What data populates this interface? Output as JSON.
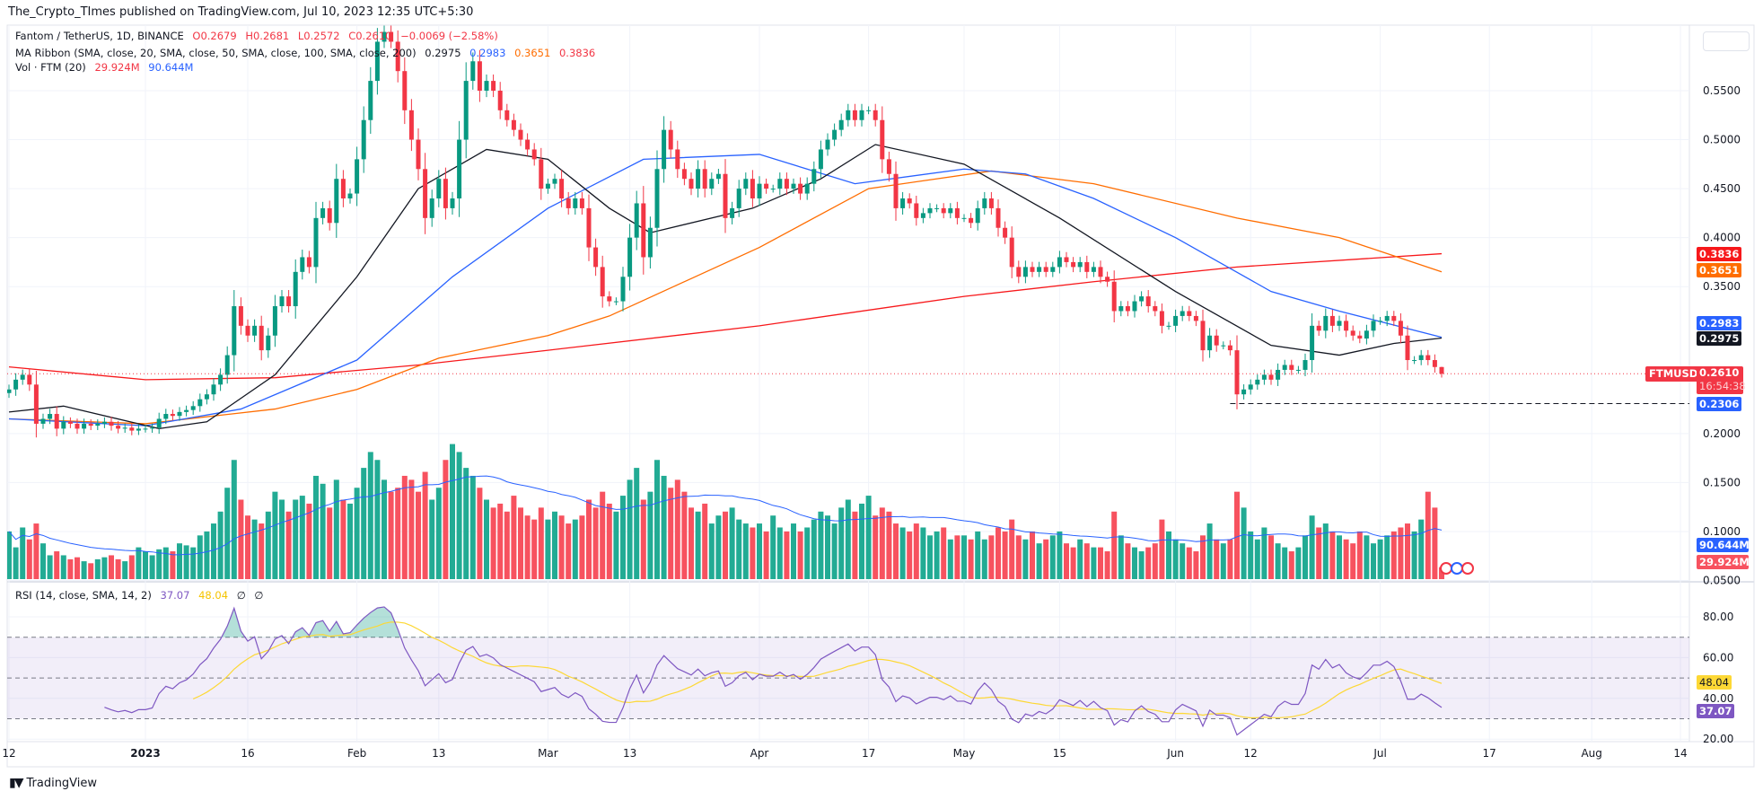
{
  "publisher_line": "The_Crypto_TImes published on TradingView.com, Jul 10, 2023 12:35 UTC+5:30",
  "legend": {
    "symbol": "Fantom / TetherUS, 1D, BINANCE",
    "open": "O0.2679",
    "high": "H0.2681",
    "low": "L0.2572",
    "close": "C0.2610",
    "change": "−0.0069 (−2.58%)",
    "ma_title": "MA Ribbon (SMA, close, 20, SMA, close, 50, SMA, close, 100, SMA, close, 200)",
    "ma20": "0.2975",
    "ma50": "0.2983",
    "ma100": "0.3651",
    "ma200": "0.3836",
    "vol_title": "Vol · FTM (20)",
    "vol": "29.924M",
    "vol_ma": "90.644M",
    "rsi_title": "RSI (14, close, SMA, 14, 2)",
    "rsi": "37.07",
    "rsi_ma": "48.04",
    "na1": "∅",
    "na2": "∅"
  },
  "price_axis": {
    "ticks": [
      "0.5500",
      "0.5000",
      "0.4500",
      "0.4000",
      "0.3500",
      "0.2000",
      "0.1500",
      "0.1000",
      "0.0500"
    ],
    "symbol_label": "FTMUSDT",
    "last_price": "0.2610",
    "countdown": "16:54:38",
    "badges": {
      "ma200": "0.3836",
      "ma100": "0.3651",
      "ma50": "0.2983",
      "ma20": "0.2975",
      "low_line": "0.2306",
      "vol_ma": "90.644M",
      "vol": "29.924M",
      "rsi_ma": "48.04",
      "rsi": "37.07"
    }
  },
  "rsi_axis": {
    "ticks": [
      "80.00",
      "60.00",
      "40.00",
      "20.00"
    ]
  },
  "footer": {
    "logo": "TV",
    "brand": "TradingView"
  },
  "colors": {
    "up": "#089981",
    "down": "#f23645",
    "ma20": "#131722",
    "ma50": "#2962ff",
    "ma100": "#ff6d00",
    "ma200": "#f7181b",
    "rsi": "#7e57c2",
    "rsi_ma": "#fdd835"
  },
  "chart_data": {
    "type": "candlestick",
    "interval": "1D",
    "date_range": [
      "2022-12-12",
      "2023-07-10"
    ],
    "last_candle": {
      "open": 0.2679,
      "high": 0.2681,
      "low": 0.2572,
      "close": 0.261
    },
    "close": [
      0.245,
      0.255,
      0.26,
      0.25,
      0.21,
      0.215,
      0.22,
      0.205,
      0.212,
      0.21,
      0.205,
      0.21,
      0.208,
      0.21,
      0.212,
      0.208,
      0.205,
      0.206,
      0.203,
      0.205,
      0.205,
      0.206,
      0.215,
      0.22,
      0.218,
      0.222,
      0.224,
      0.228,
      0.235,
      0.24,
      0.25,
      0.26,
      0.28,
      0.33,
      0.31,
      0.3,
      0.31,
      0.285,
      0.3,
      0.33,
      0.34,
      0.33,
      0.365,
      0.38,
      0.37,
      0.42,
      0.43,
      0.415,
      0.46,
      0.44,
      0.445,
      0.48,
      0.52,
      0.56,
      0.6,
      0.61,
      0.6,
      0.57,
      0.53,
      0.5,
      0.47,
      0.42,
      0.44,
      0.46,
      0.43,
      0.44,
      0.5,
      0.56,
      0.58,
      0.55,
      0.56,
      0.55,
      0.53,
      0.52,
      0.51,
      0.5,
      0.49,
      0.48,
      0.45,
      0.455,
      0.46,
      0.44,
      0.43,
      0.44,
      0.43,
      0.39,
      0.37,
      0.34,
      0.335,
      0.335,
      0.36,
      0.4,
      0.435,
      0.38,
      0.41,
      0.47,
      0.51,
      0.49,
      0.47,
      0.46,
      0.45,
      0.47,
      0.45,
      0.46,
      0.465,
      0.42,
      0.43,
      0.45,
      0.46,
      0.44,
      0.455,
      0.45,
      0.45,
      0.46,
      0.45,
      0.455,
      0.445,
      0.455,
      0.47,
      0.49,
      0.5,
      0.51,
      0.52,
      0.53,
      0.52,
      0.53,
      0.53,
      0.52,
      0.48,
      0.465,
      0.43,
      0.44,
      0.435,
      0.42,
      0.425,
      0.43,
      0.43,
      0.425,
      0.43,
      0.42,
      0.42,
      0.415,
      0.43,
      0.44,
      0.43,
      0.41,
      0.4,
      0.37,
      0.36,
      0.37,
      0.365,
      0.37,
      0.365,
      0.37,
      0.38,
      0.375,
      0.37,
      0.375,
      0.365,
      0.37,
      0.36,
      0.355,
      0.325,
      0.33,
      0.325,
      0.335,
      0.34,
      0.33,
      0.325,
      0.31,
      0.31,
      0.32,
      0.325,
      0.32,
      0.315,
      0.285,
      0.3,
      0.29,
      0.29,
      0.285,
      0.24,
      0.245,
      0.25,
      0.255,
      0.26,
      0.255,
      0.265,
      0.27,
      0.265,
      0.265,
      0.275,
      0.31,
      0.305,
      0.32,
      0.31,
      0.315,
      0.305,
      0.3,
      0.297,
      0.305,
      0.315,
      0.315,
      0.32,
      0.315,
      0.3,
      0.275,
      0.275,
      0.28,
      0.275,
      0.2679,
      0.261
    ],
    "volume_millions": [
      120,
      80,
      130,
      100,
      140,
      90,
      60,
      70,
      60,
      50,
      55,
      45,
      40,
      50,
      55,
      60,
      50,
      45,
      60,
      80,
      70,
      60,
      75,
      80,
      70,
      90,
      85,
      80,
      110,
      120,
      140,
      170,
      230,
      300,
      200,
      160,
      150,
      140,
      170,
      220,
      200,
      170,
      200,
      210,
      190,
      260,
      240,
      180,
      250,
      200,
      190,
      230,
      280,
      320,
      300,
      250,
      220,
      230,
      260,
      250,
      220,
      270,
      200,
      230,
      300,
      340,
      320,
      280,
      260,
      230,
      200,
      180,
      190,
      170,
      210,
      180,
      160,
      150,
      180,
      150,
      170,
      160,
      140,
      150,
      160,
      200,
      180,
      220,
      190,
      170,
      210,
      250,
      280,
      200,
      220,
      300,
      260,
      230,
      250,
      220,
      180,
      170,
      190,
      140,
      160,
      170,
      180,
      150,
      140,
      130,
      140,
      120,
      160,
      130,
      120,
      140,
      120,
      130,
      150,
      170,
      160,
      140,
      180,
      200,
      170,
      190,
      210,
      160,
      180,
      170,
      140,
      130,
      120,
      140,
      130,
      110,
      120,
      130,
      100,
      110,
      110,
      100,
      120,
      100,
      110,
      130,
      120,
      150,
      110,
      100,
      120,
      90,
      100,
      110,
      120,
      90,
      80,
      100,
      90,
      80,
      80,
      70,
      170,
      110,
      90,
      80,
      70,
      80,
      90,
      150,
      120,
      100,
      90,
      80,
      70,
      110,
      140,
      100,
      90,
      100,
      220,
      180,
      120,
      100,
      130,
      110,
      90,
      80,
      70,
      80,
      110,
      160,
      130,
      140,
      120,
      110,
      100,
      90,
      120,
      110,
      90,
      100,
      110,
      120,
      130,
      140,
      120,
      150,
      220,
      180,
      29.924
    ],
    "ma_lines": {
      "ma20": [
        [
          "2022-12-12",
          0.222
        ],
        [
          "2022-12-20",
          0.228
        ],
        [
          "2023-01-03",
          0.205
        ],
        [
          "2023-01-10",
          0.212
        ],
        [
          "2023-01-20",
          0.26
        ],
        [
          "2023-02-01",
          0.36
        ],
        [
          "2023-02-10",
          0.45
        ],
        [
          "2023-02-20",
          0.49
        ],
        [
          "2023-03-01",
          0.48
        ],
        [
          "2023-03-10",
          0.43
        ],
        [
          "2023-03-16",
          0.405
        ],
        [
          "2023-03-31",
          0.43
        ],
        [
          "2023-04-10",
          0.46
        ],
        [
          "2023-04-18",
          0.495
        ],
        [
          "2023-05-01",
          0.475
        ],
        [
          "2023-05-15",
          0.42
        ],
        [
          "2023-06-01",
          0.345
        ],
        [
          "2023-06-15",
          0.29
        ],
        [
          "2023-06-25",
          0.28
        ],
        [
          "2023-07-03",
          0.292
        ],
        [
          "2023-07-10",
          0.2975
        ]
      ],
      "ma50": [
        [
          "2022-12-12",
          0.215
        ],
        [
          "2023-01-01",
          0.208
        ],
        [
          "2023-01-15",
          0.225
        ],
        [
          "2023-02-01",
          0.275
        ],
        [
          "2023-02-15",
          0.36
        ],
        [
          "2023-03-01",
          0.43
        ],
        [
          "2023-03-15",
          0.48
        ],
        [
          "2023-04-01",
          0.485
        ],
        [
          "2023-04-15",
          0.455
        ],
        [
          "2023-05-01",
          0.47
        ],
        [
          "2023-05-10",
          0.465
        ],
        [
          "2023-05-20",
          0.44
        ],
        [
          "2023-06-01",
          0.4
        ],
        [
          "2023-06-15",
          0.345
        ],
        [
          "2023-06-25",
          0.325
        ],
        [
          "2023-07-10",
          0.2983
        ]
      ],
      "ma100": [
        [
          "2022-12-12",
          0.215
        ],
        [
          "2023-01-01",
          0.21
        ],
        [
          "2023-01-20",
          0.225
        ],
        [
          "2023-02-01",
          0.245
        ],
        [
          "2023-02-13",
          0.277
        ],
        [
          "2023-03-01",
          0.3
        ],
        [
          "2023-03-10",
          0.32
        ],
        [
          "2023-04-01",
          0.39
        ],
        [
          "2023-04-17",
          0.45
        ],
        [
          "2023-05-05",
          0.468
        ],
        [
          "2023-05-20",
          0.455
        ],
        [
          "2023-06-10",
          0.42
        ],
        [
          "2023-06-25",
          0.4
        ],
        [
          "2023-07-10",
          0.3651
        ]
      ],
      "ma200": [
        [
          "2022-12-12",
          0.268
        ],
        [
          "2023-01-01",
          0.255
        ],
        [
          "2023-01-20",
          0.257
        ],
        [
          "2023-02-10",
          0.27
        ],
        [
          "2023-03-01",
          0.285
        ],
        [
          "2023-04-01",
          0.31
        ],
        [
          "2023-05-01",
          0.34
        ],
        [
          "2023-05-20",
          0.355
        ],
        [
          "2023-06-10",
          0.37
        ],
        [
          "2023-07-10",
          0.3836
        ]
      ]
    },
    "horizontal_line": {
      "value": 0.2306,
      "from": "2023-06-09"
    },
    "rsi_bands": [
      70,
      50,
      30
    ],
    "time_axis": [
      {
        "label": "12",
        "date": "2022-12-12"
      },
      {
        "label": "2023",
        "date": "2023-01-01"
      },
      {
        "label": "16",
        "date": "2023-01-16"
      },
      {
        "label": "Feb",
        "date": "2023-02-01"
      },
      {
        "label": "13",
        "date": "2023-02-13"
      },
      {
        "label": "Mar",
        "date": "2023-03-01"
      },
      {
        "label": "13",
        "date": "2023-03-13"
      },
      {
        "label": "Apr",
        "date": "2023-04-01"
      },
      {
        "label": "17",
        "date": "2023-04-17"
      },
      {
        "label": "May",
        "date": "2023-05-01"
      },
      {
        "label": "15",
        "date": "2023-05-15"
      },
      {
        "label": "Jun",
        "date": "2023-06-01"
      },
      {
        "label": "12",
        "date": "2023-06-12"
      },
      {
        "label": "Jul",
        "date": "2023-07-01"
      },
      {
        "label": "17",
        "date": "2023-07-17"
      },
      {
        "label": "Aug",
        "date": "2023-08-01"
      },
      {
        "label": "14",
        "date": "2023-08-14"
      }
    ]
  }
}
